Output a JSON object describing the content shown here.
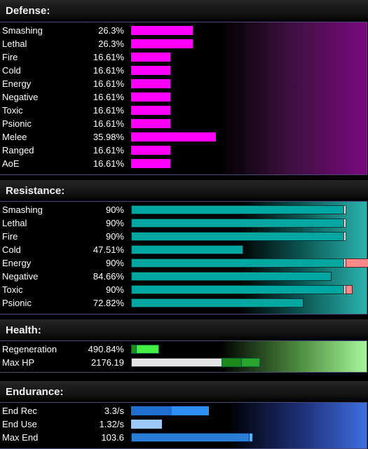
{
  "defense": {
    "title": "Defense:",
    "rows": [
      {
        "label": "Smashing",
        "value": "26.3%",
        "level": 26.3
      },
      {
        "label": "Lethal",
        "value": "26.3%",
        "level": 26.3
      },
      {
        "label": "Fire",
        "value": "16.61%",
        "level": 16.61
      },
      {
        "label": "Cold",
        "value": "16.61%",
        "level": 16.61
      },
      {
        "label": "Energy",
        "value": "16.61%",
        "level": 16.61
      },
      {
        "label": "Negative",
        "value": "16.61%",
        "level": 16.61
      },
      {
        "label": "Toxic",
        "value": "16.61%",
        "level": 16.61
      },
      {
        "label": "Psionic",
        "value": "16.61%",
        "level": 16.61
      },
      {
        "label": "Melee",
        "value": "35.98%",
        "level": 35.98
      },
      {
        "label": "Ranged",
        "value": "16.61%",
        "level": 16.61
      },
      {
        "label": "AoE",
        "value": "16.61%",
        "level": 16.61
      }
    ]
  },
  "resistance": {
    "title": "Resistance:",
    "rows": [
      {
        "label": "Smashing",
        "value": "90%",
        "level": 90,
        "capped": true,
        "over": 0
      },
      {
        "label": "Lethal",
        "value": "90%",
        "level": 90,
        "capped": true,
        "over": 0
      },
      {
        "label": "Fire",
        "value": "90%",
        "level": 90,
        "capped": true,
        "over": 0
      },
      {
        "label": "Cold",
        "value": "47.51%",
        "level": 47.51,
        "capped": false,
        "over": 0
      },
      {
        "label": "Energy",
        "value": "90%",
        "level": 90,
        "capped": true,
        "over": 10
      },
      {
        "label": "Negative",
        "value": "84.66%",
        "level": 84.66,
        "capped": false,
        "over": 0
      },
      {
        "label": "Toxic",
        "value": "90%",
        "level": 90,
        "capped": true,
        "over": 3
      },
      {
        "label": "Psionic",
        "value": "72.82%",
        "level": 72.82,
        "capped": false,
        "over": 0
      }
    ]
  },
  "health": {
    "title": "Health:",
    "regeneration": {
      "label": "Regeneration",
      "value": "490.84%"
    },
    "max_hp": {
      "label": "Max HP",
      "value": "2176.19"
    }
  },
  "endurance": {
    "title": "Endurance:",
    "end_rec": {
      "label": "End Rec",
      "value": "3.3/s"
    },
    "end_use": {
      "label": "End Use",
      "value": "1.32/s"
    },
    "max_end": {
      "label": "Max End",
      "value": "103.6"
    }
  },
  "colors": {
    "defense_bar": "#ff00ff",
    "resistance_bar": "#00a6a0",
    "resistance_over": "#ff8a8a",
    "regen_base": "#1a8f1a",
    "regen_bonus": "#44ee44",
    "hp_base": "#e6e6e6",
    "hp_bonus": "#1e8a1e",
    "end_rec_base": "#1f6fd0",
    "end_rec_bonus": "#2d8ff5",
    "end_use": "#9ec8f7",
    "max_end": "#2a7ed8"
  }
}
